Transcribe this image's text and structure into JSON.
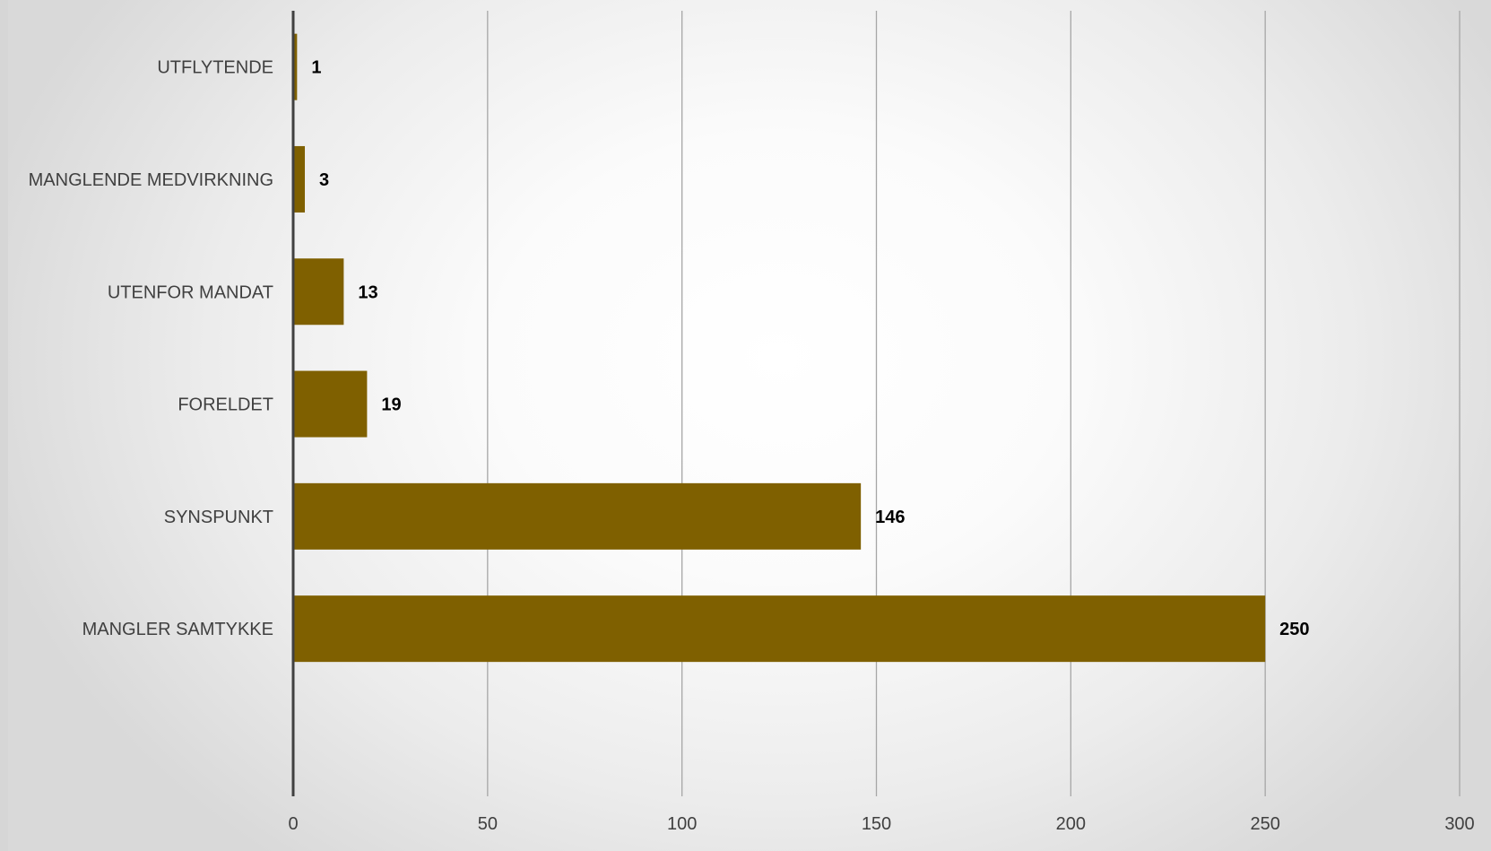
{
  "chart_data": {
    "type": "bar",
    "orientation": "horizontal",
    "categories": [
      "MANGLER SAMTYKKE",
      "SYNSPUNKT",
      "FORELDET",
      "UTENFOR MANDAT",
      "MANGLENDE MEDVIRKNING",
      "UTFLYTENDE"
    ],
    "values": [
      250,
      146,
      19,
      13,
      3,
      1
    ],
    "xlim": [
      0,
      300
    ],
    "xticks": [
      0,
      50,
      100,
      150,
      200,
      250,
      300
    ],
    "title": "",
    "xlabel": "",
    "ylabel": "",
    "grid": true,
    "legend": "none",
    "bar_color": "#7f6000",
    "data_labels": true
  }
}
